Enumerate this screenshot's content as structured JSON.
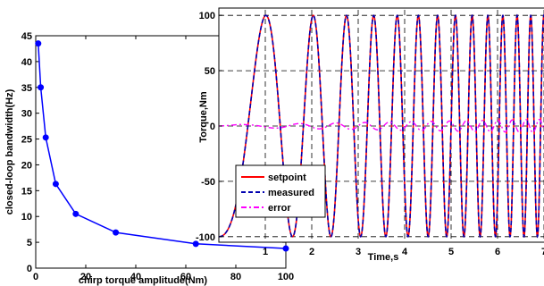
{
  "chart_data": [
    {
      "type": "line",
      "title": "",
      "xlabel": "chirp torque amplitude(Nm)",
      "ylabel": "closed-loop bandwidth(Hz)",
      "xlim": [
        0,
        100
      ],
      "ylim": [
        0,
        45
      ],
      "xticks": [
        "0",
        "20",
        "40",
        "60",
        "80",
        "100"
      ],
      "yticks": [
        "0",
        "5",
        "10",
        "15",
        "20",
        "25",
        "30",
        "35",
        "40",
        "45"
      ],
      "grid": false,
      "color": "#0000ff",
      "x": [
        1,
        2,
        4,
        8,
        16,
        32,
        64,
        100
      ],
      "y": [
        43.5,
        35,
        25.3,
        16.3,
        10.5,
        6.9,
        4.7,
        3.8
      ]
    },
    {
      "type": "line",
      "title": "",
      "xlabel": "Time,s",
      "ylabel": "Torque,Nm",
      "xlim": [
        0,
        7
      ],
      "ylim": [
        -105,
        105
      ],
      "xticks": [
        "1",
        "2",
        "3",
        "4",
        "5",
        "6",
        "7"
      ],
      "yticks": [
        "-100",
        "-50",
        "0",
        "50",
        "100"
      ],
      "grid": true,
      "legend_placement": "bottom-left",
      "description_of_signal": "chirp sinusoid of amplitude 100 Nm with increasing frequency",
      "series": [
        {
          "name": "setpoint",
          "color": "#ff0000",
          "style": "solid"
        },
        {
          "name": "measured",
          "color": "#0000b0",
          "style": "dashed"
        },
        {
          "name": "error",
          "color": "#ff00ff",
          "style": "dash-dot"
        }
      ],
      "error_amplitude": [
        1,
        2,
        3,
        4,
        5,
        6,
        7
      ]
    }
  ]
}
